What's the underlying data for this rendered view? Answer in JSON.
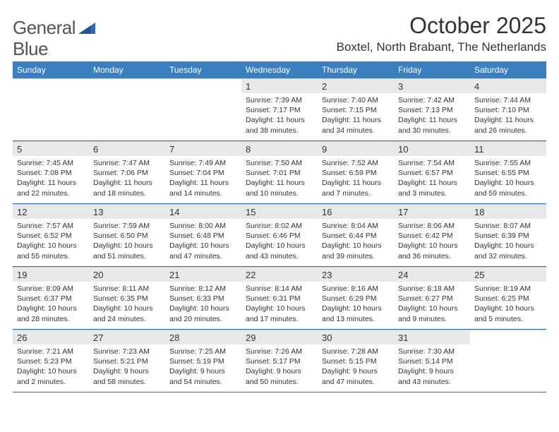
{
  "logo": {
    "text1": "General",
    "text2": "Blue"
  },
  "title": "October 2025",
  "location": "Boxtel, North Brabant, The Netherlands",
  "colors": {
    "header_bg": "#3a7fbf",
    "header_text": "#ffffff",
    "rule": "#2f6fad",
    "daybg": "#e8e8e8",
    "text": "#333333"
  },
  "weekdays": [
    "Sunday",
    "Monday",
    "Tuesday",
    "Wednesday",
    "Thursday",
    "Friday",
    "Saturday"
  ],
  "weeks": [
    [
      {
        "empty": true
      },
      {
        "empty": true
      },
      {
        "empty": true
      },
      {
        "day": "1",
        "sunrise": "Sunrise: 7:39 AM",
        "sunset": "Sunset: 7:17 PM",
        "daylight": "Daylight: 11 hours and 38 minutes."
      },
      {
        "day": "2",
        "sunrise": "Sunrise: 7:40 AM",
        "sunset": "Sunset: 7:15 PM",
        "daylight": "Daylight: 11 hours and 34 minutes."
      },
      {
        "day": "3",
        "sunrise": "Sunrise: 7:42 AM",
        "sunset": "Sunset: 7:13 PM",
        "daylight": "Daylight: 11 hours and 30 minutes."
      },
      {
        "day": "4",
        "sunrise": "Sunrise: 7:44 AM",
        "sunset": "Sunset: 7:10 PM",
        "daylight": "Daylight: 11 hours and 26 minutes."
      }
    ],
    [
      {
        "day": "5",
        "sunrise": "Sunrise: 7:45 AM",
        "sunset": "Sunset: 7:08 PM",
        "daylight": "Daylight: 11 hours and 22 minutes."
      },
      {
        "day": "6",
        "sunrise": "Sunrise: 7:47 AM",
        "sunset": "Sunset: 7:06 PM",
        "daylight": "Daylight: 11 hours and 18 minutes."
      },
      {
        "day": "7",
        "sunrise": "Sunrise: 7:49 AM",
        "sunset": "Sunset: 7:04 PM",
        "daylight": "Daylight: 11 hours and 14 minutes."
      },
      {
        "day": "8",
        "sunrise": "Sunrise: 7:50 AM",
        "sunset": "Sunset: 7:01 PM",
        "daylight": "Daylight: 11 hours and 10 minutes."
      },
      {
        "day": "9",
        "sunrise": "Sunrise: 7:52 AM",
        "sunset": "Sunset: 6:59 PM",
        "daylight": "Daylight: 11 hours and 7 minutes."
      },
      {
        "day": "10",
        "sunrise": "Sunrise: 7:54 AM",
        "sunset": "Sunset: 6:57 PM",
        "daylight": "Daylight: 11 hours and 3 minutes."
      },
      {
        "day": "11",
        "sunrise": "Sunrise: 7:55 AM",
        "sunset": "Sunset: 6:55 PM",
        "daylight": "Daylight: 10 hours and 59 minutes."
      }
    ],
    [
      {
        "day": "12",
        "sunrise": "Sunrise: 7:57 AM",
        "sunset": "Sunset: 6:52 PM",
        "daylight": "Daylight: 10 hours and 55 minutes."
      },
      {
        "day": "13",
        "sunrise": "Sunrise: 7:59 AM",
        "sunset": "Sunset: 6:50 PM",
        "daylight": "Daylight: 10 hours and 51 minutes."
      },
      {
        "day": "14",
        "sunrise": "Sunrise: 8:00 AM",
        "sunset": "Sunset: 6:48 PM",
        "daylight": "Daylight: 10 hours and 47 minutes."
      },
      {
        "day": "15",
        "sunrise": "Sunrise: 8:02 AM",
        "sunset": "Sunset: 6:46 PM",
        "daylight": "Daylight: 10 hours and 43 minutes."
      },
      {
        "day": "16",
        "sunrise": "Sunrise: 8:04 AM",
        "sunset": "Sunset: 6:44 PM",
        "daylight": "Daylight: 10 hours and 39 minutes."
      },
      {
        "day": "17",
        "sunrise": "Sunrise: 8:06 AM",
        "sunset": "Sunset: 6:42 PM",
        "daylight": "Daylight: 10 hours and 36 minutes."
      },
      {
        "day": "18",
        "sunrise": "Sunrise: 8:07 AM",
        "sunset": "Sunset: 6:39 PM",
        "daylight": "Daylight: 10 hours and 32 minutes."
      }
    ],
    [
      {
        "day": "19",
        "sunrise": "Sunrise: 8:09 AM",
        "sunset": "Sunset: 6:37 PM",
        "daylight": "Daylight: 10 hours and 28 minutes."
      },
      {
        "day": "20",
        "sunrise": "Sunrise: 8:11 AM",
        "sunset": "Sunset: 6:35 PM",
        "daylight": "Daylight: 10 hours and 24 minutes."
      },
      {
        "day": "21",
        "sunrise": "Sunrise: 8:12 AM",
        "sunset": "Sunset: 6:33 PM",
        "daylight": "Daylight: 10 hours and 20 minutes."
      },
      {
        "day": "22",
        "sunrise": "Sunrise: 8:14 AM",
        "sunset": "Sunset: 6:31 PM",
        "daylight": "Daylight: 10 hours and 17 minutes."
      },
      {
        "day": "23",
        "sunrise": "Sunrise: 8:16 AM",
        "sunset": "Sunset: 6:29 PM",
        "daylight": "Daylight: 10 hours and 13 minutes."
      },
      {
        "day": "24",
        "sunrise": "Sunrise: 8:18 AM",
        "sunset": "Sunset: 6:27 PM",
        "daylight": "Daylight: 10 hours and 9 minutes."
      },
      {
        "day": "25",
        "sunrise": "Sunrise: 8:19 AM",
        "sunset": "Sunset: 6:25 PM",
        "daylight": "Daylight: 10 hours and 5 minutes."
      }
    ],
    [
      {
        "day": "26",
        "sunrise": "Sunrise: 7:21 AM",
        "sunset": "Sunset: 5:23 PM",
        "daylight": "Daylight: 10 hours and 2 minutes."
      },
      {
        "day": "27",
        "sunrise": "Sunrise: 7:23 AM",
        "sunset": "Sunset: 5:21 PM",
        "daylight": "Daylight: 9 hours and 58 minutes."
      },
      {
        "day": "28",
        "sunrise": "Sunrise: 7:25 AM",
        "sunset": "Sunset: 5:19 PM",
        "daylight": "Daylight: 9 hours and 54 minutes."
      },
      {
        "day": "29",
        "sunrise": "Sunrise: 7:26 AM",
        "sunset": "Sunset: 5:17 PM",
        "daylight": "Daylight: 9 hours and 50 minutes."
      },
      {
        "day": "30",
        "sunrise": "Sunrise: 7:28 AM",
        "sunset": "Sunset: 5:15 PM",
        "daylight": "Daylight: 9 hours and 47 minutes."
      },
      {
        "day": "31",
        "sunrise": "Sunrise: 7:30 AM",
        "sunset": "Sunset: 5:14 PM",
        "daylight": "Daylight: 9 hours and 43 minutes."
      },
      {
        "empty": true
      }
    ]
  ]
}
